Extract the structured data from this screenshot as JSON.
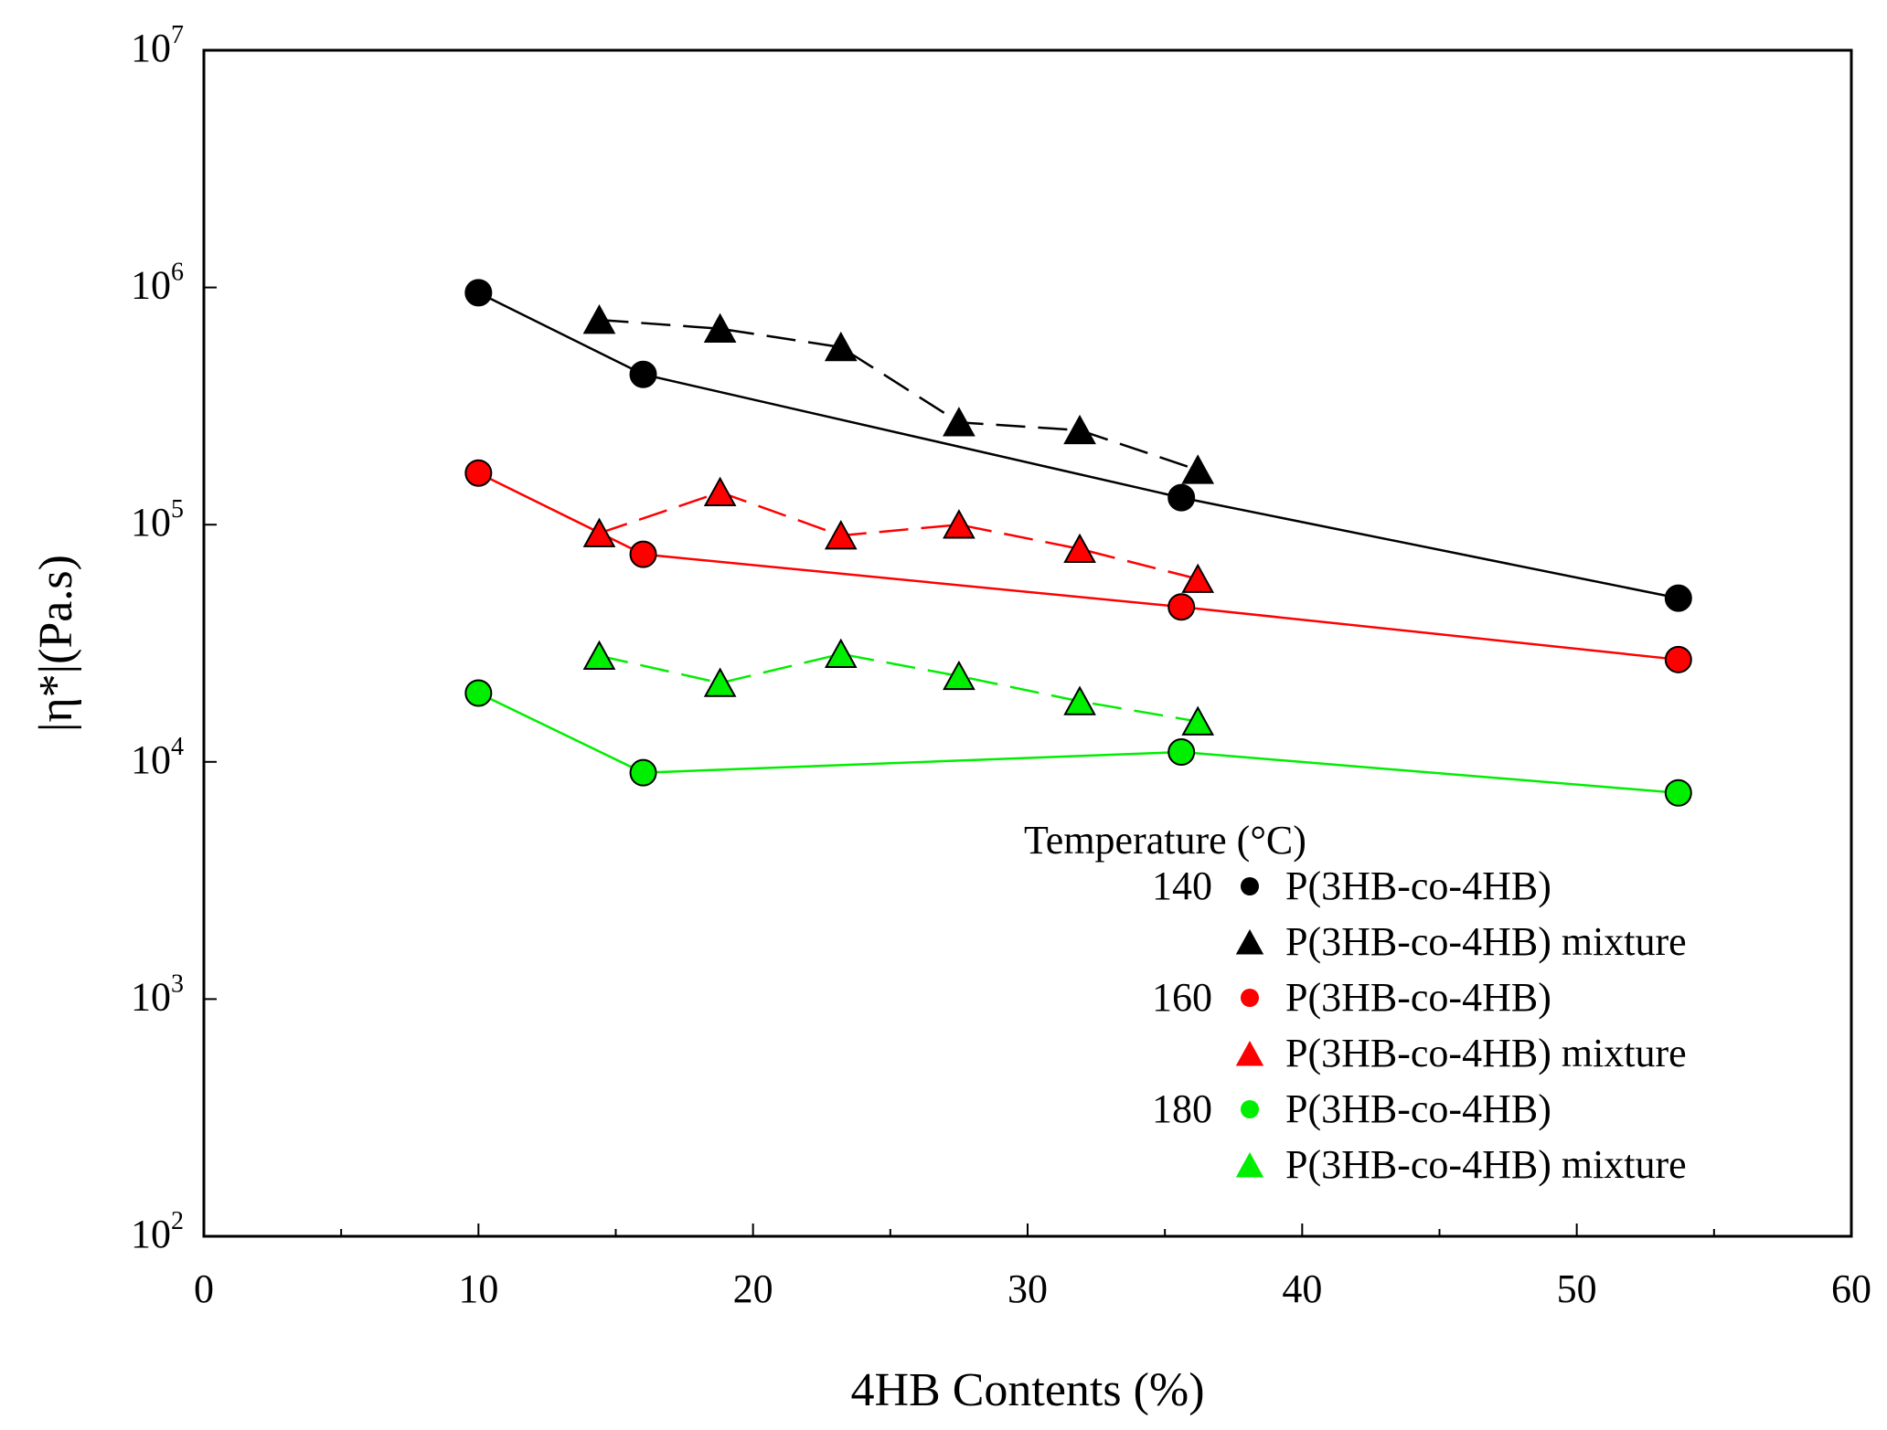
{
  "chart_data": {
    "type": "scatter",
    "title": "",
    "xlabel": "4HB Contents (%)",
    "ylabel": "|η*|(Pa.s)",
    "xlim": [
      0,
      60
    ],
    "ylim": [
      100,
      10000000
    ],
    "yscale": "log",
    "grid": false,
    "x_ticks": [
      "0",
      "10",
      "20",
      "30",
      "40",
      "50",
      "60"
    ],
    "y_ticks": [
      {
        "base": "10",
        "exp": "2"
      },
      {
        "base": "10",
        "exp": "3"
      },
      {
        "base": "10",
        "exp": "4"
      },
      {
        "base": "10",
        "exp": "5"
      },
      {
        "base": "10",
        "exp": "6"
      },
      {
        "base": "10",
        "exp": "7"
      }
    ],
    "legend": {
      "title": "Temperature (°C)",
      "position": "lower-right",
      "groups": [
        {
          "temperature": "140",
          "entries": [
            "P(3HB-co-4HB)",
            "P(3HB-co-4HB) mixture"
          ]
        },
        {
          "temperature": "160",
          "entries": [
            "P(3HB-co-4HB)",
            "P(3HB-co-4HB) mixture"
          ]
        },
        {
          "temperature": "180",
          "entries": [
            "P(3HB-co-4HB)",
            "P(3HB-co-4HB) mixture"
          ]
        }
      ]
    },
    "series": [
      {
        "name": "140 P(3HB-co-4HB)",
        "color": "#000000",
        "marker": "circle",
        "line": "solid",
        "x": [
          10,
          16,
          35.6,
          53.7
        ],
        "y": [
          950000,
          430000,
          130000,
          49000
        ]
      },
      {
        "name": "140 P(3HB-co-4HB) mixture",
        "color": "#000000",
        "marker": "triangle",
        "line": "dashed",
        "x": [
          14.4,
          18.8,
          23.2,
          27.5,
          31.9,
          36.2
        ],
        "y": [
          730000,
          670000,
          560000,
          270000,
          250000,
          170000
        ]
      },
      {
        "name": "160 P(3HB-co-4HB)",
        "color": "#ff0000",
        "marker": "circle",
        "line": "solid",
        "x": [
          10,
          16,
          35.6,
          53.7
        ],
        "y": [
          165000,
          75000,
          45000,
          27000
        ]
      },
      {
        "name": "160 P(3HB-co-4HB) mixture",
        "color": "#ff0000",
        "marker": "triangle",
        "line": "dashed",
        "x": [
          14.4,
          18.8,
          23.2,
          27.5,
          31.9,
          36.2
        ],
        "y": [
          92000,
          137000,
          90000,
          100000,
          79000,
          59000
        ]
      },
      {
        "name": "180 P(3HB-co-4HB)",
        "color": "#00ee00",
        "marker": "circle",
        "line": "solid",
        "x": [
          10,
          16,
          35.6,
          53.7
        ],
        "y": [
          19500,
          9000,
          11000,
          7400
        ]
      },
      {
        "name": "180 P(3HB-co-4HB) mixture",
        "color": "#00ee00",
        "marker": "triangle",
        "line": "dashed",
        "x": [
          14.4,
          18.8,
          23.2,
          27.5,
          31.9,
          36.2
        ],
        "y": [
          28000,
          21500,
          28500,
          23000,
          18000,
          14800
        ]
      }
    ]
  }
}
